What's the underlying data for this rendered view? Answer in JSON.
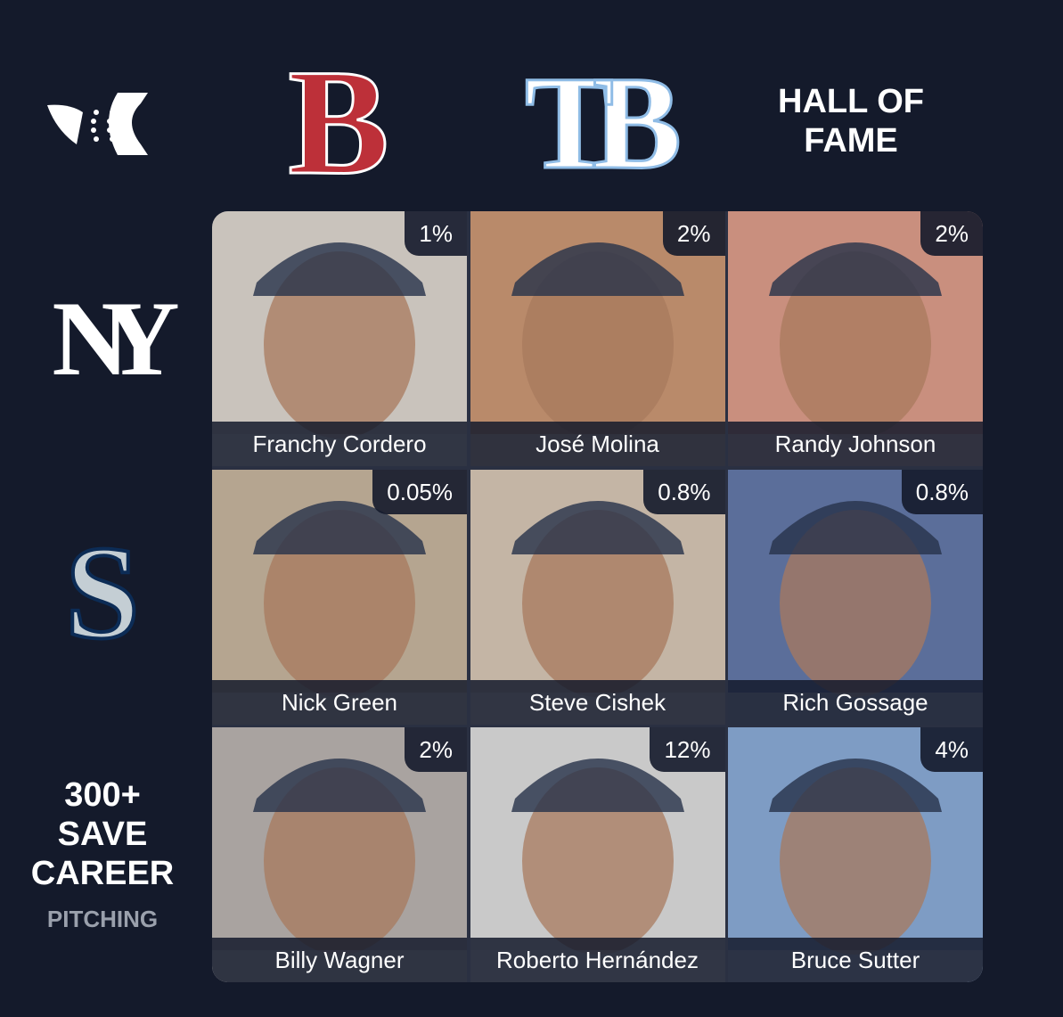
{
  "header": {
    "corner_logo": null
  },
  "columns": [
    {
      "logo": "B"
    },
    {
      "logo": "TB"
    },
    {
      "label": "HALL OF FAME"
    }
  ],
  "rows": [
    {
      "logo": "NY"
    },
    {
      "logo": "S"
    },
    {
      "label": "300+ SAVE CAREER",
      "sublabel": "PITCHING"
    }
  ],
  "grid": [
    [
      {
        "name": "Franchy Cordero",
        "percent": "1%"
      },
      {
        "name": "José Molina",
        "percent": "2%"
      },
      {
        "name": "Randy Johnson",
        "percent": "2%"
      }
    ],
    [
      {
        "name": "Nick Green",
        "percent": "0.05%"
      },
      {
        "name": "Steve Cishek",
        "percent": "0.8%"
      },
      {
        "name": "Rich Gossage",
        "percent": "0.8%"
      }
    ],
    [
      {
        "name": "Billy Wagner",
        "percent": "2%"
      },
      {
        "name": "Roberto Hernández",
        "percent": "12%"
      },
      {
        "name": "Bruce Sutter",
        "percent": "4%"
      }
    ]
  ]
}
